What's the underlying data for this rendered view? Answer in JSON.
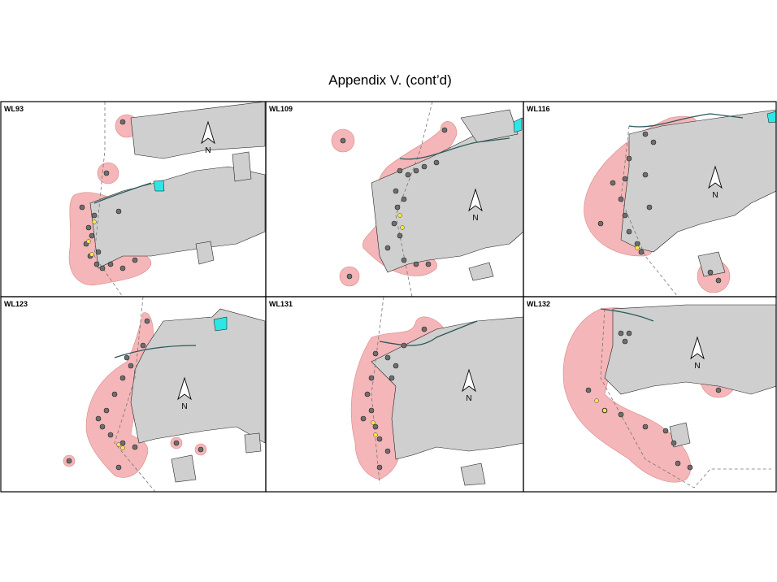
{
  "title": "Appendix V.  (cont’d)",
  "panels": [
    {
      "label": "WL93",
      "north": "N"
    },
    {
      "label": "WL109",
      "north": "N"
    },
    {
      "label": "WL116",
      "north": "N"
    },
    {
      "label": "WL123",
      "north": "N"
    },
    {
      "label": "WL131",
      "north": "N"
    },
    {
      "label": "WL132",
      "north": "N"
    }
  ]
}
